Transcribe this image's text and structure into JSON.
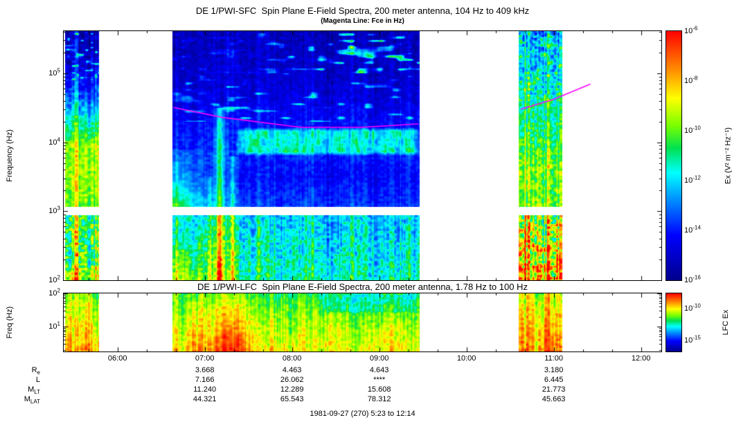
{
  "header": {
    "sfc_title": "DE 1/PWI-SFC  Spin Plane E-Field Spectra, 200 meter antenna, 104 Hz to 409 kHz",
    "sfc_subtitle": "(Magenta Line: Fce in Hz)",
    "lfc_title": "DE 1/PWI-LFC  Spin Plane E-Field Spectra, 200 meter antenna, 1.78 Hz to 100 Hz"
  },
  "axes": {
    "sfc_ylabel": "Frequency (Hz)",
    "lfc_ylabel": "Freq (Hz)",
    "sfc_yticks": [
      {
        "exp": "5",
        "logf": 5
      },
      {
        "exp": "4",
        "logf": 4
      },
      {
        "exp": "3",
        "logf": 3
      },
      {
        "exp": "2",
        "logf": 2
      }
    ],
    "lfc_yticks": [
      {
        "exp": "2",
        "logf": 2
      },
      {
        "exp": "1",
        "logf": 1
      }
    ]
  },
  "colorbars": {
    "sfc_label": "Ex (V² m⁻² Hz⁻¹)",
    "sfc_ticks": [
      {
        "exp": "-6",
        "frac": 0.0
      },
      {
        "exp": "-8",
        "frac": 0.2
      },
      {
        "exp": "-10",
        "frac": 0.4
      },
      {
        "exp": "-12",
        "frac": 0.6
      },
      {
        "exp": "-14",
        "frac": 0.8
      },
      {
        "exp": "-16",
        "frac": 1.0
      }
    ],
    "lfc_label": "LFC Ex",
    "lfc_ticks": [
      {
        "exp": "-10",
        "frac": 0.26
      },
      {
        "exp": "-15",
        "frac": 0.81
      }
    ]
  },
  "ephemeris": {
    "column_times": [
      "07:00",
      "08:00",
      "09:00",
      "11:00"
    ],
    "rows": [
      {
        "label": "R",
        "sub": "e",
        "values": [
          "3.668",
          "4.463",
          "4.643",
          "3.180"
        ]
      },
      {
        "label": "L",
        "sub": "",
        "values": [
          "7.166",
          "26.062",
          "****",
          "6.445"
        ]
      },
      {
        "label": "M",
        "sub": "LT",
        "values": [
          "11.240",
          "12.289",
          "15.608",
          "21.773"
        ]
      },
      {
        "label": "M",
        "sub": "LAT",
        "values": [
          "44.321",
          "65.543",
          "78.312",
          "45.663"
        ]
      }
    ]
  },
  "footer": "1981-09-27 (270) 5:23 to 12:14",
  "chart_data": {
    "type": "heatmap",
    "subtype": "spectrogram",
    "title": "DE 1/PWI-SFC Spin Plane E-Field Spectra, 200 meter antenna, 104 Hz to 409 kHz",
    "lfc_title": "DE 1/PWI-LFC Spin Plane E-Field Spectra, 200 meter antenna, 1.78 Hz to 100 Hz",
    "date_label": "1981-09-27 (270) 5:23 to 12:14",
    "time_axis": {
      "start": "5:23",
      "end": "12:14",
      "ticks": [
        "06:00",
        "07:00",
        "08:00",
        "09:00",
        "10:00",
        "11:00",
        "12:00"
      ]
    },
    "colormap": [
      [
        0.0,
        [
          0,
          0,
          140
        ]
      ],
      [
        0.18,
        [
          0,
          0,
          255
        ]
      ],
      [
        0.33,
        [
          0,
          150,
          255
        ]
      ],
      [
        0.43,
        [
          0,
          255,
          255
        ]
      ],
      [
        0.53,
        [
          0,
          225,
          80
        ]
      ],
      [
        0.62,
        [
          120,
          255,
          0
        ]
      ],
      [
        0.73,
        [
          255,
          255,
          0
        ]
      ],
      [
        0.84,
        [
          255,
          145,
          0
        ]
      ],
      [
        1.0,
        [
          255,
          0,
          0
        ]
      ]
    ],
    "sfc": {
      "freq_axis_hz": [
        100,
        409000
      ],
      "value_axis_log10": [
        -16,
        -6
      ],
      "gap_logf": [
        2.94,
        3.06
      ],
      "fce_line": {
        "color": "#ff00ff",
        "branches": [
          [
            [
              6.64,
              32000
            ],
            [
              7.2,
              23000
            ],
            [
              8.1,
              16500
            ],
            [
              8.8,
              16500
            ],
            [
              9.45,
              18500
            ]
          ],
          [
            [
              10.62,
              30000
            ],
            [
              11.0,
              42000
            ],
            [
              11.42,
              70000
            ]
          ]
        ]
      },
      "segments": [
        {
          "t0": 5.4,
          "t1": 5.785,
          "seed": 11,
          "noise": 0.9,
          "stripe": 0.9,
          "profile": [
            [
              2.0,
              -8.7
            ],
            [
              2.25,
              -9.9
            ],
            [
              2.6,
              -10.3
            ],
            [
              2.94,
              -9.9
            ],
            [
              3.06,
              -9.7
            ],
            [
              3.4,
              -9.3
            ],
            [
              3.95,
              -9.4
            ],
            [
              4.2,
              -10.8
            ],
            [
              4.5,
              -12.2
            ],
            [
              4.8,
              -13.6
            ],
            [
              5.15,
              -14.8
            ],
            [
              5.61,
              -15.2
            ]
          ],
          "features": [
            {
              "type": "patches",
              "f0": 4.9,
              "f1": 5.6,
              "amp": 2.5,
              "thresh": 0.66,
              "scale": [
                0.15,
                0.3
              ],
              "seed": 4
            }
          ]
        },
        {
          "t0": 6.633,
          "t1": 9.467,
          "seed": 23,
          "noise": 0.5,
          "stripe": 0.45,
          "profile": [
            [
              2.0,
              -11.2
            ],
            [
              2.45,
              -11.7
            ],
            [
              2.94,
              -12.1
            ],
            [
              3.06,
              -13.6
            ],
            [
              3.5,
              -14.2
            ],
            [
              3.95,
              -13.8
            ],
            [
              4.3,
              -14.2
            ],
            [
              4.75,
              -14.8
            ],
            [
              5.2,
              -15.1
            ],
            [
              5.61,
              -15.3
            ]
          ],
          "features": [
            {
              "type": "blob",
              "t0": 6.633,
              "t1": 7.17,
              "f0": 3.06,
              "f1": 3.9,
              "amp": 3.8
            },
            {
              "type": "blob",
              "t0": 6.633,
              "t1": 7.2,
              "f0": 2.0,
              "f1": 2.94,
              "amp": 2.6
            },
            {
              "type": "burst",
              "t": 7.175,
              "dt": 0.05,
              "f0": 2.0,
              "f1": 4.5,
              "amp": 5.2
            },
            {
              "type": "burst",
              "t": 7.32,
              "dt": 0.04,
              "f0": 2.0,
              "f1": 3.8,
              "amp": 3.2
            },
            {
              "type": "burst",
              "t": 7.06,
              "dt": 0.025,
              "f0": 2.0,
              "f1": 3.5,
              "amp": 2.2
            },
            {
              "type": "band",
              "t0": 7.35,
              "t1": 9.467,
              "f0": 3.8,
              "f1": 4.22,
              "amp": 2.4,
              "seed": 3
            },
            {
              "type": "patches",
              "f0": 5.0,
              "f1": 5.58,
              "amp": 3.4,
              "thresh": 0.6,
              "scale": [
                0.07,
                0.22
              ],
              "seed": 9,
              "tramp": [
                7.0,
                1.5
              ]
            },
            {
              "type": "patches",
              "f0": 4.3,
              "f1": 5.0,
              "amp": 2.0,
              "thresh": 0.72,
              "scale": [
                0.05,
                0.2
              ],
              "seed": 14
            }
          ]
        },
        {
          "t0": 10.6,
          "t1": 11.1,
          "seed": 31,
          "noise": 1.2,
          "stripe": 1.2,
          "profile": [
            [
              2.0,
              -7.9
            ],
            [
              2.4,
              -8.8
            ],
            [
              2.94,
              -9.5
            ],
            [
              3.06,
              -10.0
            ],
            [
              3.6,
              -9.9
            ],
            [
              4.1,
              -10.7
            ],
            [
              4.6,
              -11.5
            ],
            [
              5.05,
              -12.1
            ],
            [
              5.61,
              -13.1
            ]
          ],
          "features": [
            {
              "type": "patches",
              "f0": 4.6,
              "f1": 5.61,
              "amp": 1.5,
              "thresh": 0.55,
              "scale": [
                0.2,
                0.25
              ],
              "seed": 6
            }
          ]
        }
      ]
    },
    "lfc": {
      "freq_axis_hz": [
        1.78,
        100
      ],
      "value_axis_log10": [
        -16,
        -6
      ],
      "segments": [
        {
          "t0": 5.4,
          "t1": 5.785,
          "seed": 41,
          "noise": 0.8,
          "stripe": 0.9,
          "profile": [
            [
              0.25,
              -8.0
            ],
            [
              0.9,
              -8.7
            ],
            [
              1.5,
              -9.3
            ],
            [
              2.0,
              -9.9
            ]
          ],
          "features": []
        },
        {
          "t0": 6.633,
          "t1": 9.467,
          "seed": 43,
          "noise": 0.7,
          "stripe": 0.8,
          "profile": [
            [
              0.25,
              -8.7
            ],
            [
              0.9,
              -9.3
            ],
            [
              1.5,
              -9.9
            ],
            [
              2.0,
              -10.6
            ]
          ],
          "features": [
            {
              "type": "burst",
              "t": 7.3,
              "dt": 0.2,
              "f0": 0.25,
              "f1": 2.0,
              "amp": 2.6
            },
            {
              "type": "burst",
              "t": 6.9,
              "dt": 0.12,
              "f0": 0.25,
              "f1": 2.0,
              "amp": 1.2
            },
            {
              "type": "band",
              "t0": 8.3,
              "t1": 9.467,
              "f0": 1.4,
              "f1": 2.0,
              "amp": -0.9,
              "seed": 8
            }
          ]
        },
        {
          "t0": 10.6,
          "t1": 11.1,
          "seed": 47,
          "noise": 0.9,
          "stripe": 1.1,
          "profile": [
            [
              0.25,
              -7.5
            ],
            [
              0.9,
              -8.1
            ],
            [
              1.5,
              -8.7
            ],
            [
              2.0,
              -9.3
            ]
          ],
          "features": []
        }
      ]
    }
  }
}
